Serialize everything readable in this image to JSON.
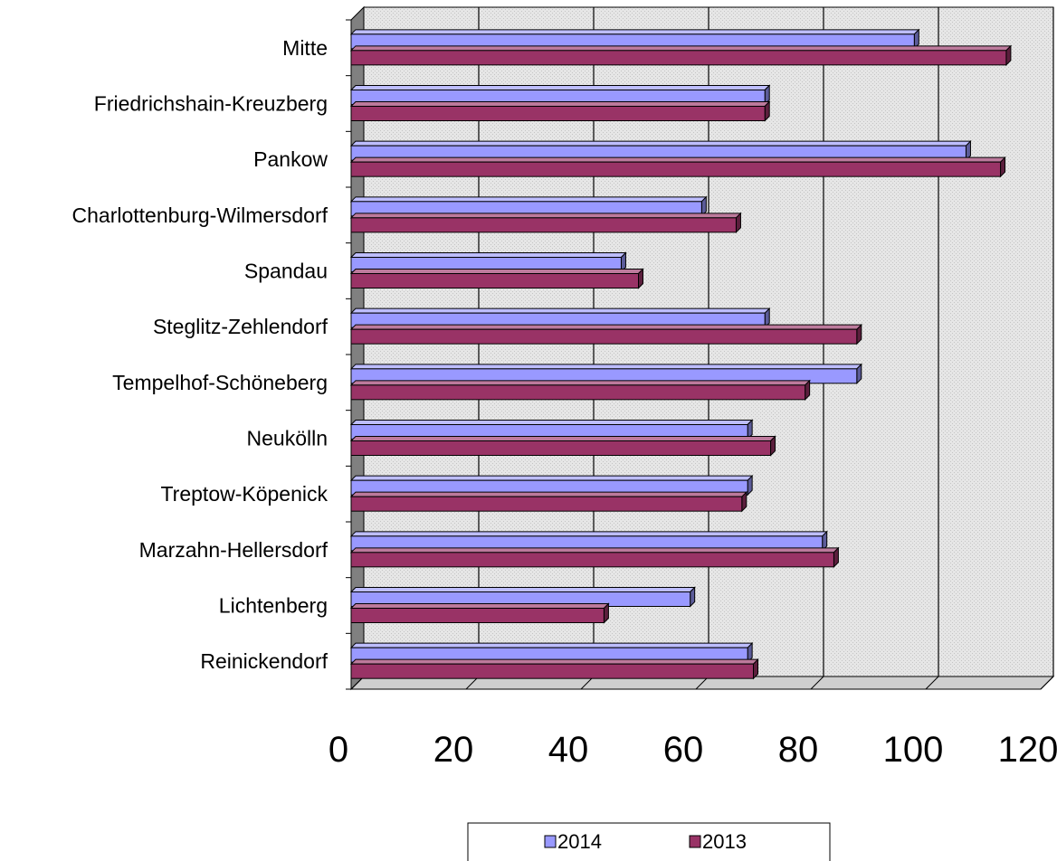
{
  "chart_data": {
    "type": "bar",
    "orientation": "horizontal",
    "three_d": true,
    "categories": [
      "Mitte",
      "Friedrichshain-Kreuzberg",
      "Pankow",
      "Charlottenburg-Wilmersdorf",
      "Spandau",
      "Steglitz-Zehlendorf",
      "Tempelhof-Schöneberg",
      "Neukölln",
      "Treptow-Köpenick",
      "Marzahn-Hellersdorf",
      "Lichtenberg",
      "Reinickendorf"
    ],
    "series": [
      {
        "name": "2014",
        "color": "#9999FF",
        "values": [
          98,
          72,
          107,
          61,
          47,
          72,
          88,
          69,
          69,
          82,
          59,
          69
        ]
      },
      {
        "name": "2013",
        "color": "#993366",
        "values": [
          114,
          72,
          113,
          67,
          50,
          88,
          79,
          73,
          68,
          84,
          44,
          70
        ]
      }
    ],
    "x_ticks": [
      "0",
      "20",
      "40",
      "60",
      "80",
      "100",
      "120"
    ],
    "xlim": [
      0,
      120
    ],
    "grid": true,
    "legend_position": "bottom"
  }
}
